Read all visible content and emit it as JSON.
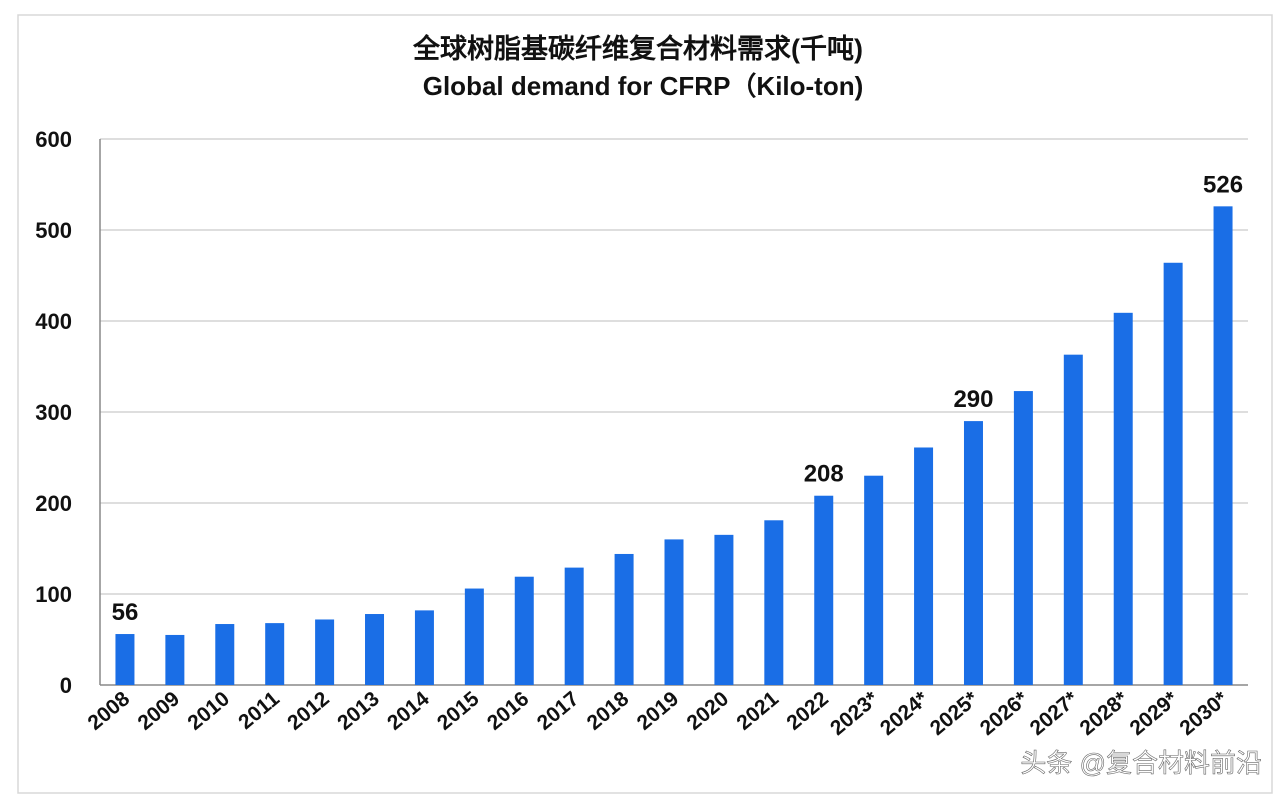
{
  "title_cn": "全球树脂基碳纤维复合材料需求(千吨)",
  "title_en": "Global demand for CFRP（Kilo-ton)",
  "watermark": "头条 @复合材料前沿",
  "colors": {
    "bar": "#1a6ee6",
    "grid": "#bdbdbd",
    "frame": "#d8d8d8"
  },
  "chart_data": {
    "type": "bar",
    "title": "全球树脂基碳纤维复合材料需求(千吨) Global demand for CFRP（Kilo-ton)",
    "xlabel": "",
    "ylabel": "",
    "ylim": [
      0,
      600
    ],
    "yticks": [
      0,
      100,
      200,
      300,
      400,
      500,
      600
    ],
    "grid": true,
    "categories": [
      "2008",
      "2009",
      "2010",
      "2011",
      "2012",
      "2013",
      "2014",
      "2015",
      "2016",
      "2017",
      "2018",
      "2019",
      "2020",
      "2021",
      "2022",
      "2023*",
      "2024*",
      "2025*",
      "2026*",
      "2027*",
      "2028*",
      "2029*",
      "2030*"
    ],
    "values": [
      56,
      55,
      67,
      68,
      72,
      78,
      82,
      106,
      119,
      129,
      144,
      160,
      165,
      181,
      208,
      230,
      261,
      290,
      323,
      363,
      409,
      464,
      526
    ],
    "data_labels": [
      {
        "category": "2008",
        "text": "56"
      },
      {
        "category": "2022",
        "text": "208"
      },
      {
        "category": "2025*",
        "text": "290"
      },
      {
        "category": "2030*",
        "text": "526"
      }
    ]
  }
}
